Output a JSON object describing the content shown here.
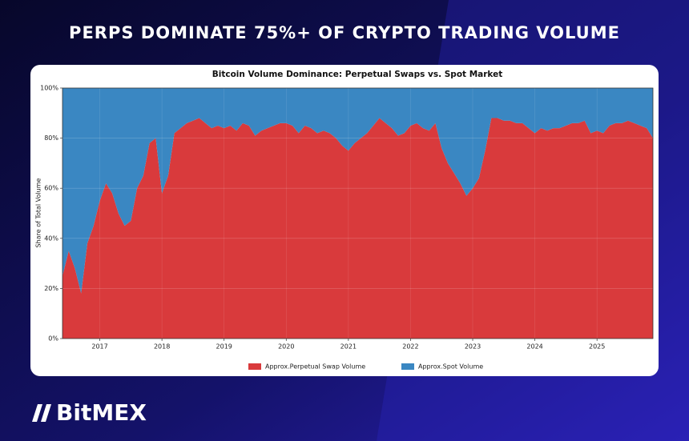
{
  "header": {
    "title": "PERPS DOMINATE 75%+ OF CRYPTO TRADING VOLUME"
  },
  "brand": "BitMEX",
  "chart_data": {
    "type": "stacked_area",
    "title": "Bitcoin Volume Dominance: Perpetual Swaps vs. Spot Market",
    "y_label": "Share of Total Volume",
    "x": [
      2016.4,
      2016.5,
      2016.6,
      2016.7,
      2016.8,
      2016.9,
      2017.0,
      2017.1,
      2017.2,
      2017.3,
      2017.4,
      2017.5,
      2017.6,
      2017.7,
      2017.8,
      2017.9,
      2018.0,
      2018.1,
      2018.2,
      2018.3,
      2018.4,
      2018.5,
      2018.6,
      2018.7,
      2018.8,
      2018.9,
      2019.0,
      2019.1,
      2019.2,
      2019.3,
      2019.4,
      2019.5,
      2019.6,
      2019.7,
      2019.8,
      2019.9,
      2020.0,
      2020.1,
      2020.2,
      2020.3,
      2020.4,
      2020.5,
      2020.6,
      2020.7,
      2020.8,
      2020.9,
      2021.0,
      2021.1,
      2021.2,
      2021.3,
      2021.4,
      2021.5,
      2021.6,
      2021.7,
      2021.8,
      2021.9,
      2022.0,
      2022.1,
      2022.2,
      2022.3,
      2022.4,
      2022.5,
      2022.6,
      2022.7,
      2022.8,
      2022.9,
      2023.0,
      2023.1,
      2023.2,
      2023.3,
      2023.4,
      2023.5,
      2023.6,
      2023.7,
      2023.8,
      2023.9,
      2024.0,
      2024.1,
      2024.2,
      2024.3,
      2024.4,
      2024.5,
      2024.6,
      2024.7,
      2024.8,
      2024.9,
      2025.0,
      2025.1,
      2025.2,
      2025.3,
      2025.4,
      2025.5,
      2025.6,
      2025.7,
      2025.8,
      2025.9
    ],
    "series": [
      {
        "name": "Approx.Perpetual Swap Volume",
        "color": "#d93a3c",
        "values": [
          25,
          35,
          28,
          18,
          38,
          45,
          55,
          62,
          58,
          50,
          45,
          47,
          60,
          65,
          78,
          80,
          58,
          65,
          82,
          84,
          86,
          87,
          88,
          86,
          84,
          85,
          84,
          85,
          83,
          86,
          85,
          81,
          83,
          84,
          85,
          86,
          86,
          85,
          82,
          85,
          84,
          82,
          83,
          82,
          80,
          77,
          75,
          78,
          80,
          82,
          85,
          88,
          86,
          84,
          81,
          82,
          85,
          86,
          84,
          83,
          86,
          76,
          70,
          66,
          62,
          57,
          60,
          64,
          75,
          88,
          88,
          87,
          87,
          86,
          86,
          84,
          82,
          84,
          83,
          84,
          84,
          85,
          86,
          86,
          87,
          82,
          83,
          82,
          85,
          86,
          86,
          87,
          86,
          85,
          84,
          80
        ]
      },
      {
        "name": "Approx.Spot Volume",
        "color": "#3a87c2",
        "values": [
          75,
          65,
          72,
          82,
          62,
          55,
          45,
          38,
          42,
          50,
          55,
          53,
          40,
          35,
          22,
          20,
          42,
          35,
          18,
          16,
          14,
          13,
          12,
          14,
          16,
          15,
          16,
          15,
          17,
          14,
          15,
          19,
          17,
          16,
          15,
          14,
          14,
          15,
          18,
          15,
          16,
          18,
          17,
          18,
          20,
          23,
          25,
          22,
          20,
          18,
          15,
          12,
          14,
          16,
          19,
          18,
          15,
          14,
          16,
          17,
          14,
          24,
          30,
          34,
          38,
          43,
          40,
          36,
          25,
          12,
          12,
          13,
          13,
          14,
          14,
          16,
          18,
          16,
          17,
          16,
          16,
          15,
          14,
          14,
          13,
          18,
          17,
          18,
          15,
          14,
          14,
          13,
          14,
          15,
          16,
          20
        ]
      }
    ],
    "xlim": [
      2016.4,
      2025.9
    ],
    "xticks": [
      2017,
      2018,
      2019,
      2020,
      2021,
      2022,
      2023,
      2024,
      2025
    ],
    "ylim": [
      0,
      100
    ],
    "yticks": [
      {
        "value": 0,
        "label": "0%"
      },
      {
        "value": 20,
        "label": "20%"
      },
      {
        "value": 40,
        "label": "40%"
      },
      {
        "value": 60,
        "label": "60%"
      },
      {
        "value": 80,
        "label": "80%"
      },
      {
        "value": 100,
        "label": "100%"
      }
    ],
    "grid": true,
    "legend": "bottom"
  }
}
